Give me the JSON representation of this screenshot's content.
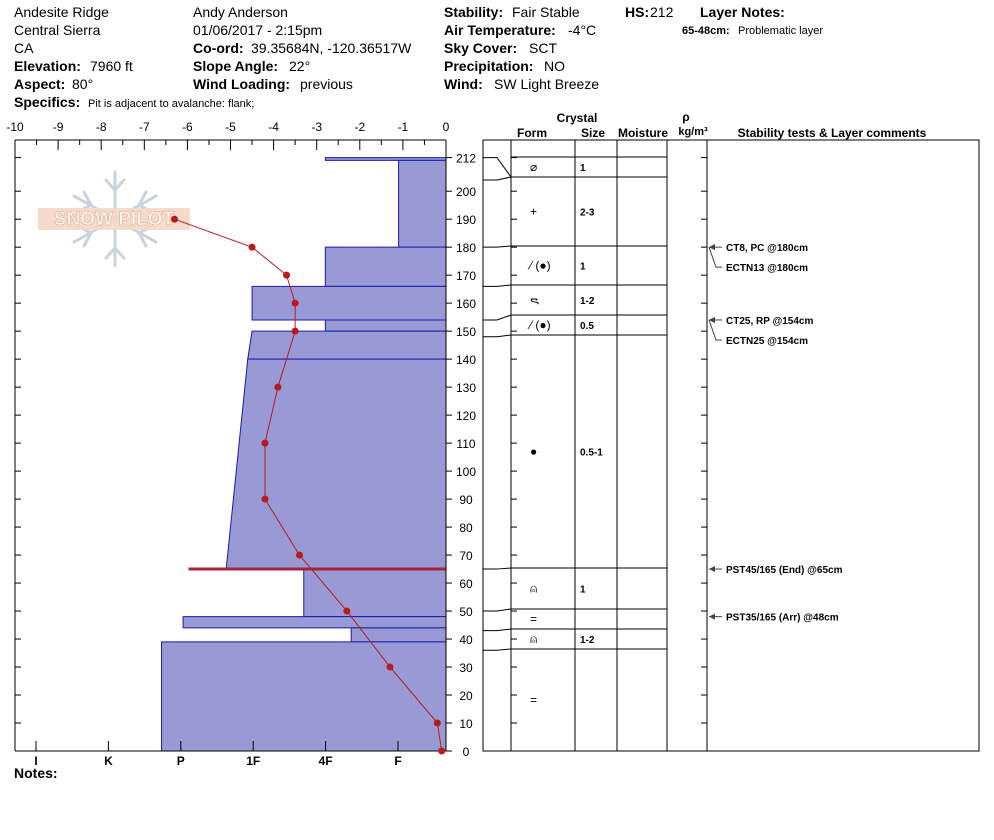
{
  "header": {
    "location": "Andesite Ridge",
    "range": "Central Sierra",
    "state": "CA",
    "elevation_label": "Elevation:",
    "elevation_value": "7960 ft",
    "aspect_label": "Aspect:",
    "aspect_value": "80°",
    "specifics_label": "Specifics:",
    "specifics_value": "Pit is adjacent to avalanche: flank;",
    "observer": "Andy Anderson",
    "datetime": "01/06/2017 - 2:15pm",
    "coord_label": "Co-ord:",
    "coord_value": "39.35684N, -120.36517W",
    "slope_label": "Slope Angle:",
    "slope_value": "22°",
    "wind_loading_label": "Wind Loading:",
    "wind_loading_value": "previous",
    "stability_label": "Stability:",
    "stability_value": "Fair Stable",
    "air_temp_label": "Air Temperature:",
    "air_temp_value": "-4°C",
    "sky_label": "Sky Cover:",
    "sky_value": "SCT",
    "precip_label": "Precipitation:",
    "precip_value": "NO",
    "wind_label": "Wind:",
    "wind_value": "SW Light Breeze",
    "hs_label": "HS:",
    "hs_value": "212",
    "layer_notes_label": "Layer Notes:",
    "layer_note_range": "65-48cm:",
    "layer_note_text": "Problematic layer"
  },
  "logo_text": "SNOW PILOT",
  "notes_label": "Notes:",
  "columns": {
    "crystal": "Crystal",
    "form": "Form",
    "size": "Size",
    "moisture": "Moisture",
    "rho": "ρ",
    "density_unit": "kg/m³",
    "stability": "Stability tests & Layer comments"
  },
  "colors": {
    "hardness_fill": "#9999d6",
    "hardness_stroke": "#1a1aa8",
    "temperature_line": "#b71c1c",
    "grid": "#000000"
  },
  "chart_data": {
    "type": "snow-profile",
    "x_temperature": {
      "ticks": [
        -10,
        -9,
        -8,
        -7,
        -6,
        -5,
        -4,
        -3,
        -2,
        -1,
        0
      ],
      "range": [
        -10,
        0
      ]
    },
    "x_hardness": {
      "ticks": [
        "I",
        "K",
        "P",
        "1F",
        "4F",
        "F"
      ]
    },
    "y_height": {
      "ticks": [
        0,
        10,
        20,
        30,
        40,
        50,
        60,
        70,
        80,
        90,
        100,
        110,
        120,
        130,
        140,
        150,
        160,
        170,
        180,
        190,
        200,
        212
      ],
      "range": [
        0,
        212
      ]
    },
    "temperature_profile": [
      {
        "height": 190,
        "temp": -6.3
      },
      {
        "height": 180,
        "temp": -4.5
      },
      {
        "height": 170,
        "temp": -3.7
      },
      {
        "height": 160,
        "temp": -3.5
      },
      {
        "height": 150,
        "temp": -3.5
      },
      {
        "height": 130,
        "temp": -3.9
      },
      {
        "height": 110,
        "temp": -4.2
      },
      {
        "height": 90,
        "temp": -4.2
      },
      {
        "height": 70,
        "temp": -3.4
      },
      {
        "height": 50,
        "temp": -2.3
      },
      {
        "height": 30,
        "temp": -1.3
      },
      {
        "height": 10,
        "temp": -0.2
      },
      {
        "height": 0,
        "temp": -0.1
      }
    ],
    "hardness_layers": [
      {
        "top": 212,
        "bottom": 211,
        "hardness": 2.8
      },
      {
        "top": 211,
        "bottom": 180,
        "hardness": 1.1
      },
      {
        "top": 180,
        "bottom": 166,
        "hardness": 2.8
      },
      {
        "top": 166,
        "bottom": 154,
        "hardness": 4.5
      },
      {
        "top": 154,
        "bottom": 150,
        "hardness": 2.8
      },
      {
        "top": 150,
        "bottom": 140,
        "hardness": 4.5,
        "bottom_hardness": 4.6
      },
      {
        "top": 140,
        "bottom": 65,
        "hardness": 4.6,
        "bottom_hardness": 5.1
      },
      {
        "top": 65,
        "bottom": 48,
        "hardness": 3.3
      },
      {
        "top": 48,
        "bottom": 44,
        "hardness": 6.1
      },
      {
        "top": 44,
        "bottom": 39,
        "hardness": 2.2
      },
      {
        "top": 39,
        "bottom": 0,
        "hardness": 6.6
      }
    ],
    "layers": [
      {
        "top": 212,
        "bottom": 204,
        "form": "⌀",
        "size": "1"
      },
      {
        "top": 204,
        "bottom": 180,
        "form": "+",
        "size": "2-3"
      },
      {
        "top": 180,
        "bottom": 166,
        "form": "⁄ (●)",
        "size": "1"
      },
      {
        "top": 166,
        "bottom": 154,
        "form": "ᯍ",
        "size": "1-2"
      },
      {
        "top": 154,
        "bottom": 148,
        "form": "⁄ (●)",
        "size": "0.5"
      },
      {
        "top": 148,
        "bottom": 65,
        "form": "●",
        "size": "0.5-1"
      },
      {
        "top": 65,
        "bottom": 50,
        "form": "⍝",
        "size": "1"
      },
      {
        "top": 50,
        "bottom": 43,
        "form": "=",
        "size": ""
      },
      {
        "top": 43,
        "bottom": 36,
        "form": "⍝",
        "size": "1-2"
      },
      {
        "top": 36,
        "bottom": 0,
        "form": "=",
        "size": ""
      }
    ],
    "stability_tests": [
      {
        "height": 180,
        "text": "CT8, PC @180cm"
      },
      {
        "height": 180,
        "text": "ECTN13 @180cm"
      },
      {
        "height": 154,
        "text": "CT25, RP @154cm"
      },
      {
        "height": 154,
        "text": "ECTN25 @154cm"
      },
      {
        "height": 65,
        "text": "PST45/165 (End) @65cm"
      },
      {
        "height": 48,
        "text": "PST35/165 (Arr) @48cm"
      }
    ]
  }
}
